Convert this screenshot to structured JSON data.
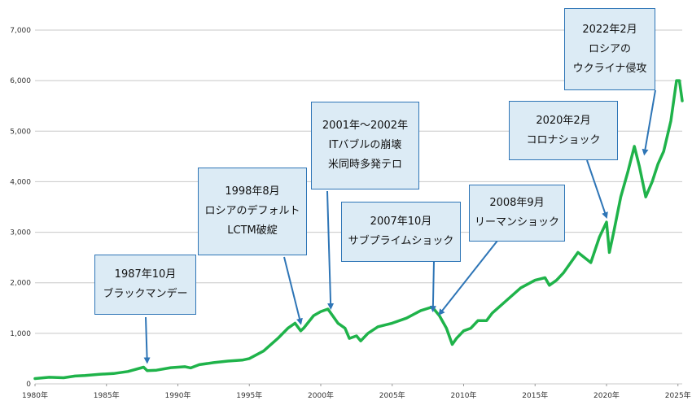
{
  "chart_data": {
    "type": "line",
    "title": "",
    "xlabel": "",
    "ylabel": "",
    "xlim": [
      1980,
      2025.3
    ],
    "ylim": [
      0,
      7000
    ],
    "x_tick_labels": [
      "1980年",
      "1985年",
      "1990年",
      "1995年",
      "2000年",
      "2005年",
      "2010年",
      "2015年",
      "2020年",
      "2025年"
    ],
    "x_tick_values": [
      1980,
      1985,
      1990,
      1995,
      2000,
      2005,
      2010,
      2015,
      2020,
      2025
    ],
    "y_tick_labels": [
      "0",
      "1,000",
      "2,000",
      "3,000",
      "4,000",
      "5,000",
      "6,000",
      "7,000"
    ],
    "y_tick_values": [
      0,
      1000,
      2000,
      3000,
      4000,
      5000,
      6000,
      7000
    ],
    "grid": "horizontal",
    "series": [
      {
        "color": "#1fb34a",
        "x": [
          1980.0,
          1981.0,
          1982.0,
          1982.8,
          1983.5,
          1984.5,
          1985.5,
          1986.5,
          1987.6,
          1987.85,
          1988.5,
          1989.5,
          1990.5,
          1990.9,
          1991.5,
          1992.5,
          1993.5,
          1994.5,
          1995.0,
          1996.0,
          1997.0,
          1997.7,
          1998.2,
          1998.6,
          1998.8,
          1999.5,
          2000.0,
          2000.5,
          2000.7,
          2001.2,
          2001.7,
          2002.0,
          2002.5,
          2002.8,
          2003.3,
          2004.0,
          2005.0,
          2006.0,
          2007.0,
          2007.8,
          2008.3,
          2008.8,
          2009.2,
          2009.5,
          2010.0,
          2010.5,
          2011.0,
          2011.6,
          2012.0,
          2013.0,
          2014.0,
          2015.0,
          2015.7,
          2016.0,
          2016.5,
          2017.0,
          2018.0,
          2018.9,
          2019.5,
          2020.0,
          2020.2,
          2020.5,
          2021.0,
          2021.5,
          2021.95,
          2022.3,
          2022.75,
          2023.2,
          2023.6,
          2024.0,
          2024.5,
          2024.9,
          2025.1,
          2025.3
        ],
        "y": [
          105,
          130,
          120,
          155,
          165,
          190,
          205,
          245,
          330,
          260,
          270,
          320,
          340,
          315,
          380,
          420,
          450,
          470,
          500,
          650,
          900,
          1100,
          1200,
          1050,
          1100,
          1350,
          1430,
          1480,
          1400,
          1200,
          1100,
          900,
          950,
          850,
          1000,
          1130,
          1200,
          1300,
          1450,
          1520,
          1350,
          1100,
          780,
          900,
          1050,
          1100,
          1250,
          1250,
          1400,
          1650,
          1900,
          2050,
          2100,
          1950,
          2050,
          2200,
          2600,
          2400,
          2900,
          3200,
          2600,
          3000,
          3700,
          4200,
          4700,
          4300,
          3700,
          4000,
          4350,
          4600,
          5200,
          6000,
          6000,
          5600
        ]
      }
    ],
    "annotations": [
      {
        "lines": [
          "1987年10月",
          "ブラックマンデー"
        ],
        "x": 1987.85,
        "y": 330
      },
      {
        "lines": [
          "1998年8月",
          "ロシアのデフォルト",
          "LCTM破綻"
        ],
        "x": 1998.6,
        "y": 1100
      },
      {
        "lines": [
          "2001年～2002年",
          "ITバブルの崩壊",
          "米同時多発テロ"
        ],
        "x": 2000.7,
        "y": 1400
      },
      {
        "lines": [
          "2007年10月",
          "サブプライムショック"
        ],
        "x": 2007.85,
        "y": 1350
      },
      {
        "lines": [
          "2008年9月",
          "リーマンショック"
        ],
        "x": 2008.3,
        "y": 1280
      },
      {
        "lines": [
          "2020年2月",
          "コロナショック"
        ],
        "x": 2020.0,
        "y": 3200
      },
      {
        "lines": [
          "2022年2月",
          "ロシアの",
          "ウクライナ侵攻"
        ],
        "x": 2022.65,
        "y": 4450
      }
    ],
    "colors": {
      "line": "#1fb34a",
      "arrow": "#2e75b6",
      "box_fill": "#dcebf5",
      "box_border": "#2e75b6",
      "grid": "#c8c8c8"
    }
  }
}
